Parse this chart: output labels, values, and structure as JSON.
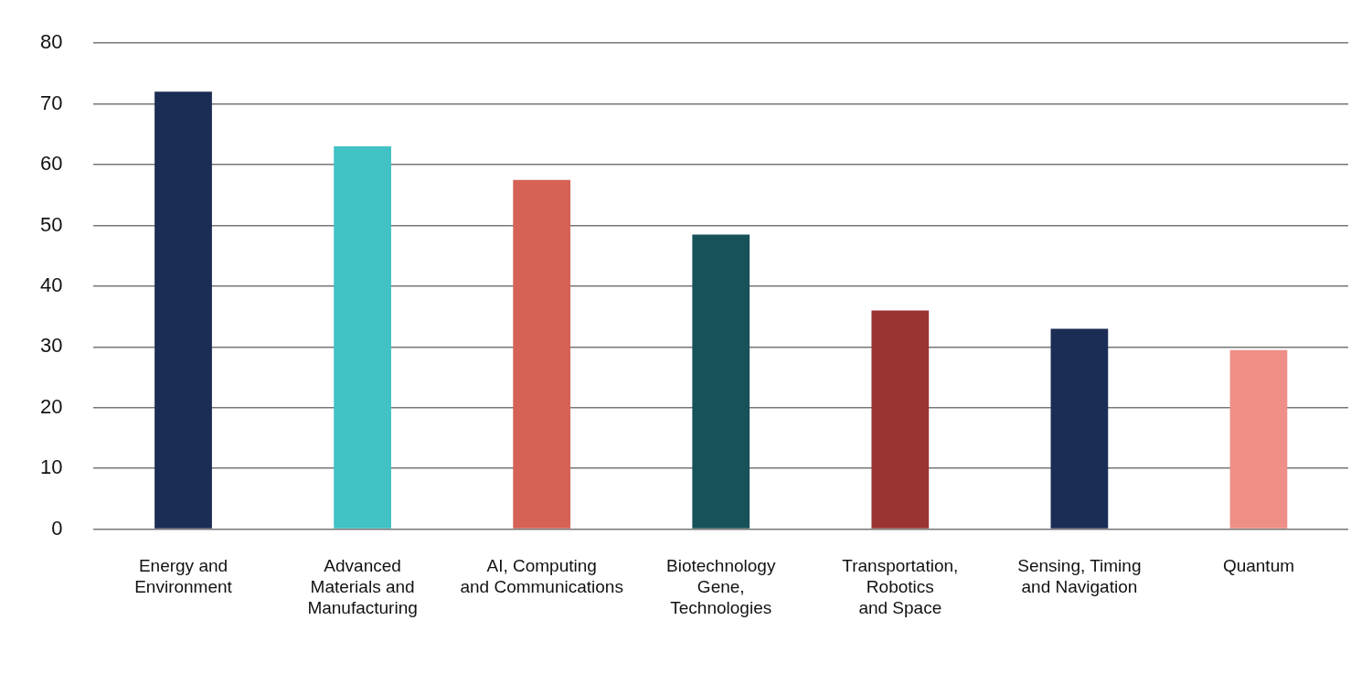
{
  "chart_data": {
    "type": "bar",
    "categories": [
      "Energy and\nEnvironment",
      "Advanced\nMaterials and\nManufacturing",
      "AI, Computing\nand Communications",
      "Biotechnology\nGene,\nTechnologies",
      "Transportation,\nRobotics\nand Space",
      "Sensing, Timing\nand Navigation",
      "Quantum"
    ],
    "values": [
      72,
      63,
      57.5,
      48.5,
      36,
      33,
      29.5
    ],
    "colors": [
      "#1b2d55",
      "#41c2c4",
      "#d66155",
      "#17525a",
      "#993433",
      "#1b2d55",
      "#ef8f87"
    ],
    "ylim": [
      0,
      80
    ],
    "yticks": [
      0,
      10,
      20,
      30,
      40,
      50,
      60,
      70,
      80
    ],
    "grid": "y",
    "legend": false
  }
}
